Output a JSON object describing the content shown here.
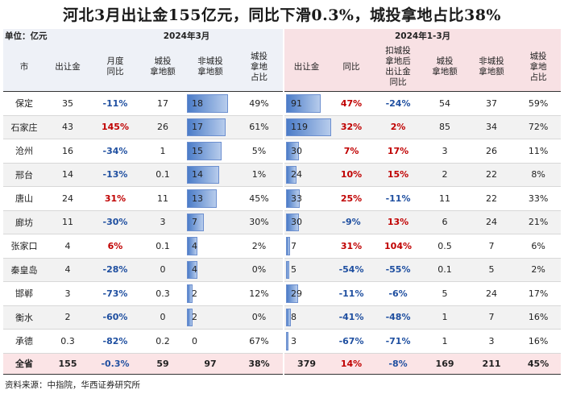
{
  "title": "河北3月出让金155亿元，同比下滑0.3%，城投拿地占比38%",
  "unit": "单位：亿元",
  "group_month": "2024年3月",
  "group_ytd": "2024年1-3月",
  "columns": [
    "市",
    "出让金",
    "月度\n同比",
    "城投\n拿地额",
    "非城投\n拿地额",
    "城投\n拿地\n占比",
    "出让金",
    "同比",
    "扣城投\n拿地后\n出让金\n同比",
    "城投\n拿地额",
    "非城投\n拿地额",
    "城投\n拿地\n占比"
  ],
  "rows": [
    {
      "city": "保定",
      "m_amt": "35",
      "m_yoy": "-11%",
      "m_ct": "17",
      "m_nct": "18",
      "m_nct_v": 18,
      "m_share": "49%",
      "y_amt": "91",
      "y_amt_v": 91,
      "y_yoy": "47%",
      "y_ex": "-24%",
      "y_ct": "54",
      "y_nct": "37",
      "y_share": "59%"
    },
    {
      "city": "石家庄",
      "m_amt": "43",
      "m_yoy": "145%",
      "m_ct": "26",
      "m_nct": "17",
      "m_nct_v": 17,
      "m_share": "61%",
      "y_amt": "119",
      "y_amt_v": 119,
      "y_yoy": "32%",
      "y_ex": "2%",
      "y_ct": "85",
      "y_nct": "34",
      "y_share": "72%"
    },
    {
      "city": "沧州",
      "m_amt": "16",
      "m_yoy": "-34%",
      "m_ct": "1",
      "m_nct": "15",
      "m_nct_v": 15,
      "m_share": "5%",
      "y_amt": "30",
      "y_amt_v": 30,
      "y_yoy": "7%",
      "y_ex": "17%",
      "y_ct": "3",
      "y_nct": "26",
      "y_share": "11%"
    },
    {
      "city": "邢台",
      "m_amt": "14",
      "m_yoy": "-13%",
      "m_ct": "0.1",
      "m_nct": "14",
      "m_nct_v": 14,
      "m_share": "1%",
      "y_amt": "24",
      "y_amt_v": 24,
      "y_yoy": "10%",
      "y_ex": "15%",
      "y_ct": "2",
      "y_nct": "22",
      "y_share": "8%"
    },
    {
      "city": "唐山",
      "m_amt": "24",
      "m_yoy": "31%",
      "m_ct": "11",
      "m_nct": "13",
      "m_nct_v": 13,
      "m_share": "45%",
      "y_amt": "33",
      "y_amt_v": 33,
      "y_yoy": "25%",
      "y_ex": "-11%",
      "y_ct": "11",
      "y_nct": "22",
      "y_share": "33%"
    },
    {
      "city": "廊坊",
      "m_amt": "11",
      "m_yoy": "-30%",
      "m_ct": "3",
      "m_nct": "7",
      "m_nct_v": 7,
      "m_share": "30%",
      "y_amt": "30",
      "y_amt_v": 30,
      "y_yoy": "-9%",
      "y_ex": "13%",
      "y_ct": "6",
      "y_nct": "24",
      "y_share": "21%"
    },
    {
      "city": "张家口",
      "m_amt": "4",
      "m_yoy": "6%",
      "m_ct": "0.1",
      "m_nct": "4",
      "m_nct_v": 4,
      "m_share": "2%",
      "y_amt": "7",
      "y_amt_v": 7,
      "y_yoy": "31%",
      "y_ex": "104%",
      "y_ct": "0.5",
      "y_nct": "7",
      "y_share": "6%"
    },
    {
      "city": "秦皇岛",
      "m_amt": "4",
      "m_yoy": "-28%",
      "m_ct": "0",
      "m_nct": "4",
      "m_nct_v": 4,
      "m_share": "0%",
      "y_amt": "5",
      "y_amt_v": 5,
      "y_yoy": "-54%",
      "y_ex": "-55%",
      "y_ct": "0.1",
      "y_nct": "5",
      "y_share": "2%"
    },
    {
      "city": "邯郸",
      "m_amt": "3",
      "m_yoy": "-73%",
      "m_ct": "0.3",
      "m_nct": "2",
      "m_nct_v": 2,
      "m_share": "12%",
      "y_amt": "29",
      "y_amt_v": 29,
      "y_yoy": "-11%",
      "y_ex": "-6%",
      "y_ct": "5",
      "y_nct": "24",
      "y_share": "17%"
    },
    {
      "city": "衡水",
      "m_amt": "2",
      "m_yoy": "-60%",
      "m_ct": "0",
      "m_nct": "2",
      "m_nct_v": 2,
      "m_share": "0%",
      "y_amt": "8",
      "y_amt_v": 8,
      "y_yoy": "-41%",
      "y_ex": "-48%",
      "y_ct": "1",
      "y_nct": "7",
      "y_share": "16%"
    },
    {
      "city": "承德",
      "m_amt": "0.3",
      "m_yoy": "-82%",
      "m_ct": "0.2",
      "m_nct": "0",
      "m_nct_v": 0,
      "m_share": "67%",
      "y_amt": "3",
      "y_amt_v": 3,
      "y_yoy": "-67%",
      "y_ex": "-71%",
      "y_ct": "1",
      "y_nct": "3",
      "y_share": "16%"
    }
  ],
  "total": {
    "city": "全省",
    "m_amt": "155",
    "m_yoy": "-0.3%",
    "m_ct": "59",
    "m_nct": "97",
    "m_share": "38%",
    "y_amt": "379",
    "y_yoy": "14%",
    "y_ex": "-8%",
    "y_ct": "169",
    "y_nct": "211",
    "y_share": "45%"
  },
  "source": "资料来源：中指院，华西证券研究所",
  "colors": {
    "positive": "#c00000",
    "negative": "#1f4fa0",
    "bar": "#4b7cc8",
    "header_left": "#eef1f7",
    "header_right": "#f8e1e4"
  }
}
